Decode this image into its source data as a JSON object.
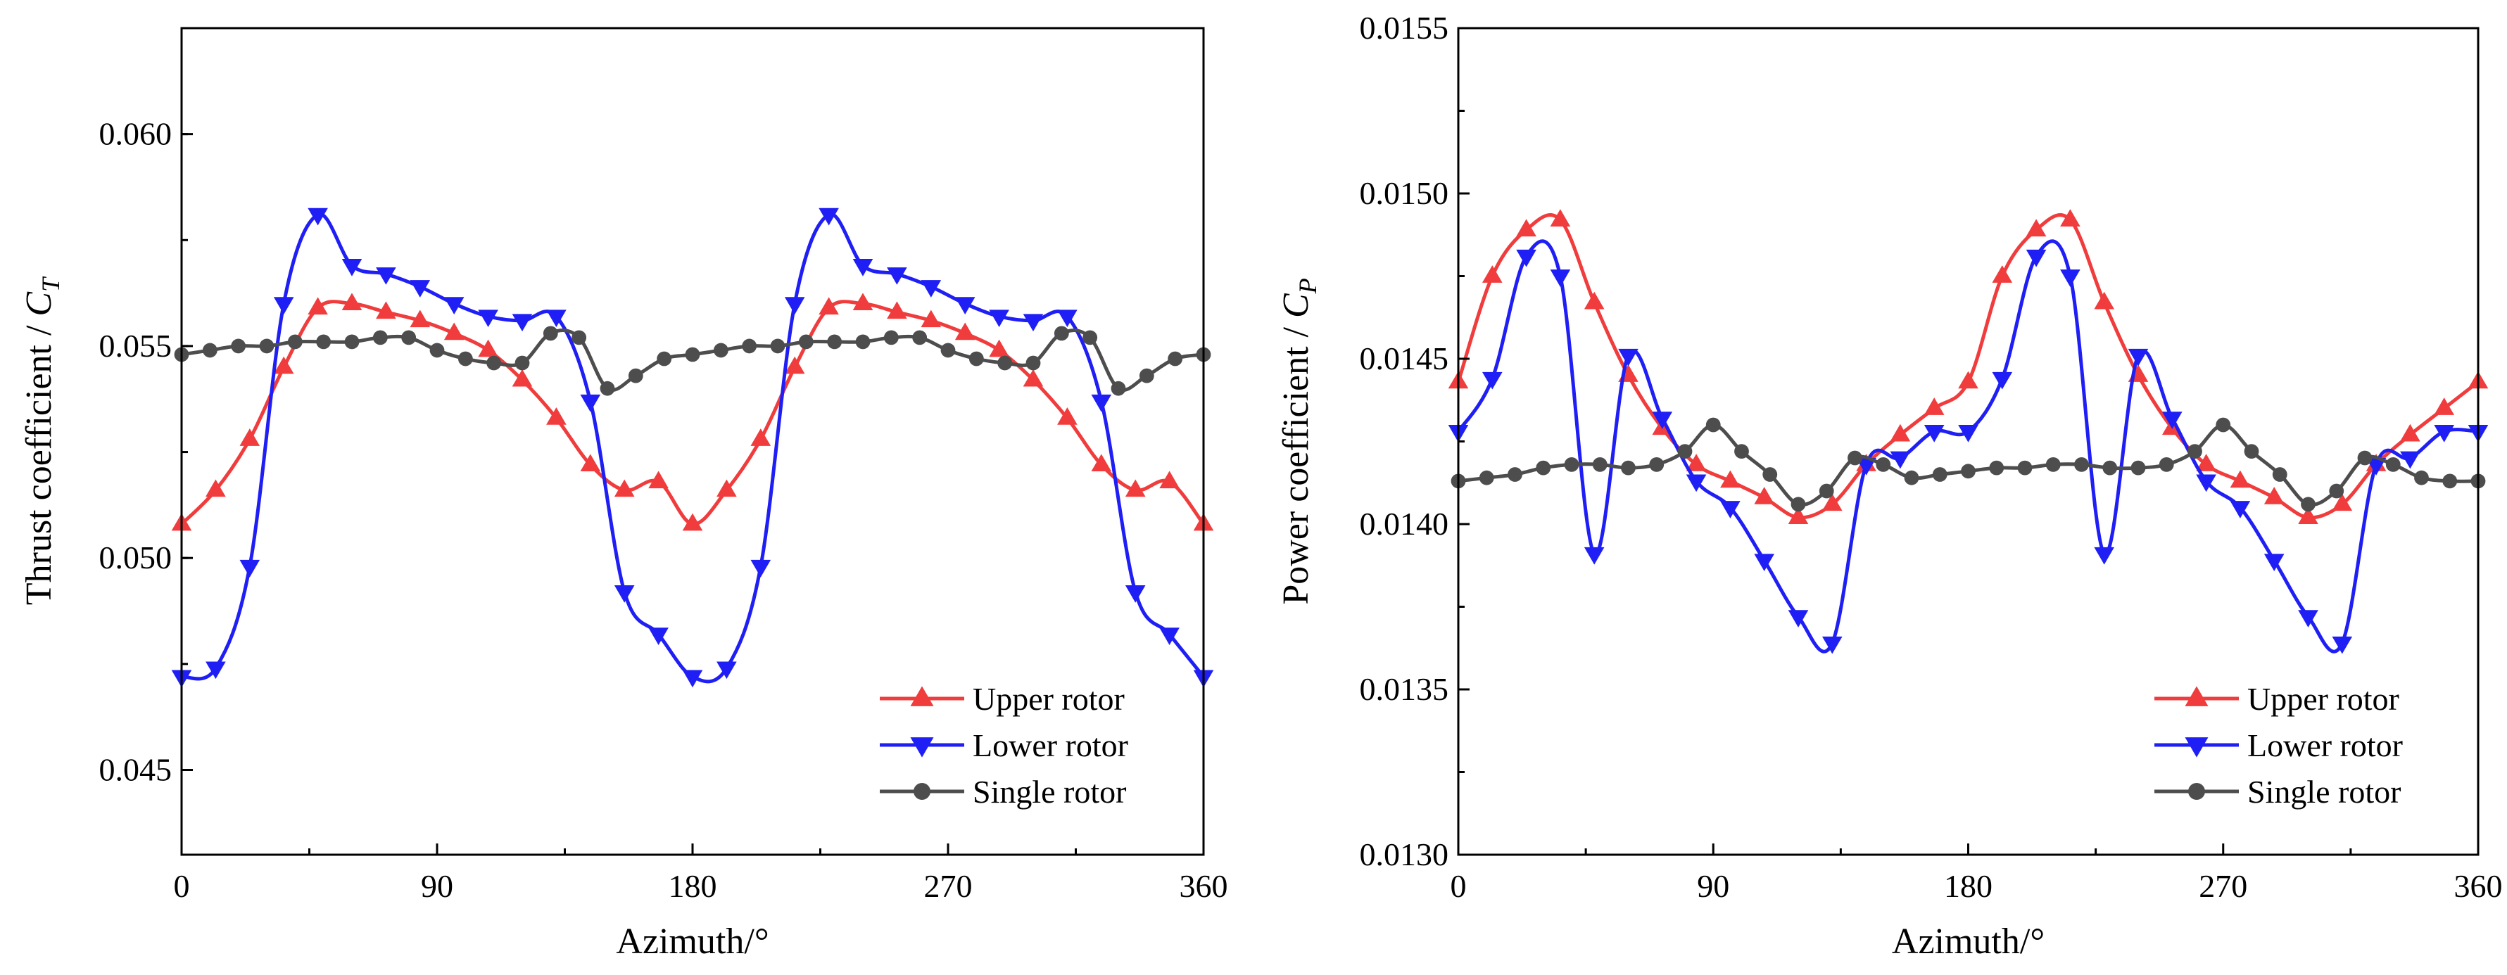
{
  "chart_data": [
    {
      "type": "line",
      "xlabel": "Azimuth/°",
      "ylabel_text": "Thrust coefficient / ",
      "ylabel_symbol": "C",
      "ylabel_subscript": "T",
      "xlim": [
        0,
        360
      ],
      "ylim": [
        0.043,
        0.0625
      ],
      "x_ticks": [
        0,
        90,
        180,
        270,
        360
      ],
      "x_tick_labels": [
        "0",
        "90",
        "180",
        "270",
        "360"
      ],
      "y_ticks": [
        0.045,
        0.05,
        0.055,
        0.06
      ],
      "y_tick_labels": [
        "0.045",
        "0.050",
        "0.055",
        "0.060"
      ],
      "grid": false,
      "legend_position": "bottom-right",
      "series": [
        {
          "name": "Upper rotor",
          "color": "#f03c3c",
          "marker": "triangle-up",
          "x": [
            0,
            12,
            24,
            36,
            48,
            60,
            72,
            84,
            96,
            108,
            120,
            132,
            144,
            156,
            168,
            180,
            192,
            204,
            216,
            228,
            240,
            252,
            264,
            276,
            288,
            300,
            312,
            324,
            336,
            348,
            360
          ],
          "y": [
            0.0508,
            0.0516,
            0.0528,
            0.0545,
            0.0559,
            0.056,
            0.0558,
            0.0556,
            0.0553,
            0.0549,
            0.0542,
            0.0533,
            0.0522,
            0.0516,
            0.0518,
            0.0508,
            0.0516,
            0.0528,
            0.0545,
            0.0559,
            0.056,
            0.0558,
            0.0556,
            0.0553,
            0.0549,
            0.0542,
            0.0533,
            0.0522,
            0.0516,
            0.0518,
            0.0508
          ]
        },
        {
          "name": "Lower rotor",
          "color": "#1f1ff5",
          "marker": "triangle-down",
          "x": [
            0,
            12,
            24,
            36,
            48,
            60,
            72,
            84,
            96,
            108,
            120,
            132,
            144,
            156,
            168,
            180,
            192,
            204,
            216,
            228,
            240,
            252,
            264,
            276,
            288,
            300,
            312,
            324,
            336,
            348,
            360
          ],
          "y": [
            0.0472,
            0.0474,
            0.0498,
            0.056,
            0.0581,
            0.0569,
            0.0567,
            0.0564,
            0.056,
            0.0557,
            0.0556,
            0.0557,
            0.0537,
            0.0492,
            0.0482,
            0.0472,
            0.0474,
            0.0498,
            0.056,
            0.0581,
            0.0569,
            0.0567,
            0.0564,
            0.056,
            0.0557,
            0.0556,
            0.0557,
            0.0537,
            0.0492,
            0.0482,
            0.0472
          ]
        },
        {
          "name": "Single rotor",
          "color": "#4d4d4d",
          "marker": "circle",
          "x": [
            0,
            10,
            20,
            30,
            40,
            50,
            60,
            70,
            80,
            90,
            100,
            110,
            120,
            130,
            140,
            150,
            160,
            170,
            180,
            190,
            200,
            210,
            220,
            230,
            240,
            250,
            260,
            270,
            280,
            290,
            300,
            310,
            320,
            330,
            340,
            350,
            360
          ],
          "y": [
            0.0548,
            0.0549,
            0.055,
            0.055,
            0.0551,
            0.0551,
            0.0551,
            0.0552,
            0.0552,
            0.0549,
            0.0547,
            0.0546,
            0.0546,
            0.0553,
            0.0552,
            0.054,
            0.0543,
            0.0547,
            0.0548,
            0.0549,
            0.055,
            0.055,
            0.0551,
            0.0551,
            0.0551,
            0.0552,
            0.0552,
            0.0549,
            0.0547,
            0.0546,
            0.0546,
            0.0553,
            0.0552,
            0.054,
            0.0543,
            0.0547,
            0.0548
          ]
        }
      ]
    },
    {
      "type": "line",
      "xlabel": "Azimuth/°",
      "ylabel_text": "Power coefficient / ",
      "ylabel_symbol": "C",
      "ylabel_subscript": "P",
      "xlim": [
        0,
        360
      ],
      "ylim": [
        0.013,
        0.0155
      ],
      "x_ticks": [
        0,
        90,
        180,
        270,
        360
      ],
      "x_tick_labels": [
        "0",
        "90",
        "180",
        "270",
        "360"
      ],
      "y_ticks": [
        0.013,
        0.0135,
        0.014,
        0.0145,
        0.015,
        0.0155
      ],
      "y_tick_labels": [
        "0.0130",
        "0.0135",
        "0.0140",
        "0.0145",
        "0.0150",
        "0.0155"
      ],
      "grid": false,
      "legend_position": "bottom-right",
      "series": [
        {
          "name": "Upper rotor",
          "color": "#f03c3c",
          "marker": "triangle-up",
          "x": [
            0,
            12,
            24,
            36,
            48,
            60,
            72,
            84,
            96,
            108,
            120,
            132,
            144,
            156,
            168,
            180,
            192,
            204,
            216,
            228,
            240,
            252,
            264,
            276,
            288,
            300,
            312,
            324,
            336,
            348,
            360
          ],
          "y": [
            0.01443,
            0.01475,
            0.01489,
            0.01492,
            0.01467,
            0.01445,
            0.01429,
            0.01418,
            0.01413,
            0.01408,
            0.01402,
            0.01406,
            0.01418,
            0.01427,
            0.01435,
            0.01443,
            0.01475,
            0.01489,
            0.01492,
            0.01467,
            0.01445,
            0.01429,
            0.01418,
            0.01413,
            0.01408,
            0.01402,
            0.01406,
            0.01418,
            0.01427,
            0.01435,
            0.01443
          ]
        },
        {
          "name": "Lower rotor",
          "color": "#1f1ff5",
          "marker": "triangle-down",
          "x": [
            0,
            12,
            24,
            36,
            48,
            60,
            72,
            84,
            96,
            108,
            120,
            132,
            144,
            156,
            168,
            180,
            192,
            204,
            216,
            228,
            240,
            252,
            264,
            276,
            288,
            300,
            312,
            324,
            336,
            348,
            360
          ],
          "y": [
            0.01428,
            0.01444,
            0.01481,
            0.01475,
            0.01391,
            0.01451,
            0.01432,
            0.01413,
            0.01405,
            0.01389,
            0.01372,
            0.01364,
            0.01418,
            0.0142,
            0.01428,
            0.01428,
            0.01444,
            0.01481,
            0.01475,
            0.01391,
            0.01451,
            0.01432,
            0.01413,
            0.01405,
            0.01389,
            0.01372,
            0.01364,
            0.01418,
            0.0142,
            0.01428,
            0.01428
          ]
        },
        {
          "name": "Single rotor",
          "color": "#4d4d4d",
          "marker": "circle",
          "x": [
            0,
            10,
            20,
            30,
            40,
            50,
            60,
            70,
            80,
            90,
            100,
            110,
            120,
            130,
            140,
            150,
            160,
            170,
            180,
            190,
            200,
            210,
            220,
            230,
            240,
            250,
            260,
            270,
            280,
            290,
            300,
            310,
            320,
            330,
            340,
            350,
            360
          ],
          "y": [
            0.01413,
            0.01414,
            0.01415,
            0.01417,
            0.01418,
            0.01418,
            0.01417,
            0.01418,
            0.01422,
            0.0143,
            0.01422,
            0.01415,
            0.01406,
            0.0141,
            0.0142,
            0.01418,
            0.01414,
            0.01415,
            0.01416,
            0.01417,
            0.01417,
            0.01418,
            0.01418,
            0.01417,
            0.01417,
            0.01418,
            0.01422,
            0.0143,
            0.01422,
            0.01415,
            0.01406,
            0.0141,
            0.0142,
            0.01418,
            0.01414,
            0.01413,
            0.01413
          ]
        }
      ]
    }
  ]
}
